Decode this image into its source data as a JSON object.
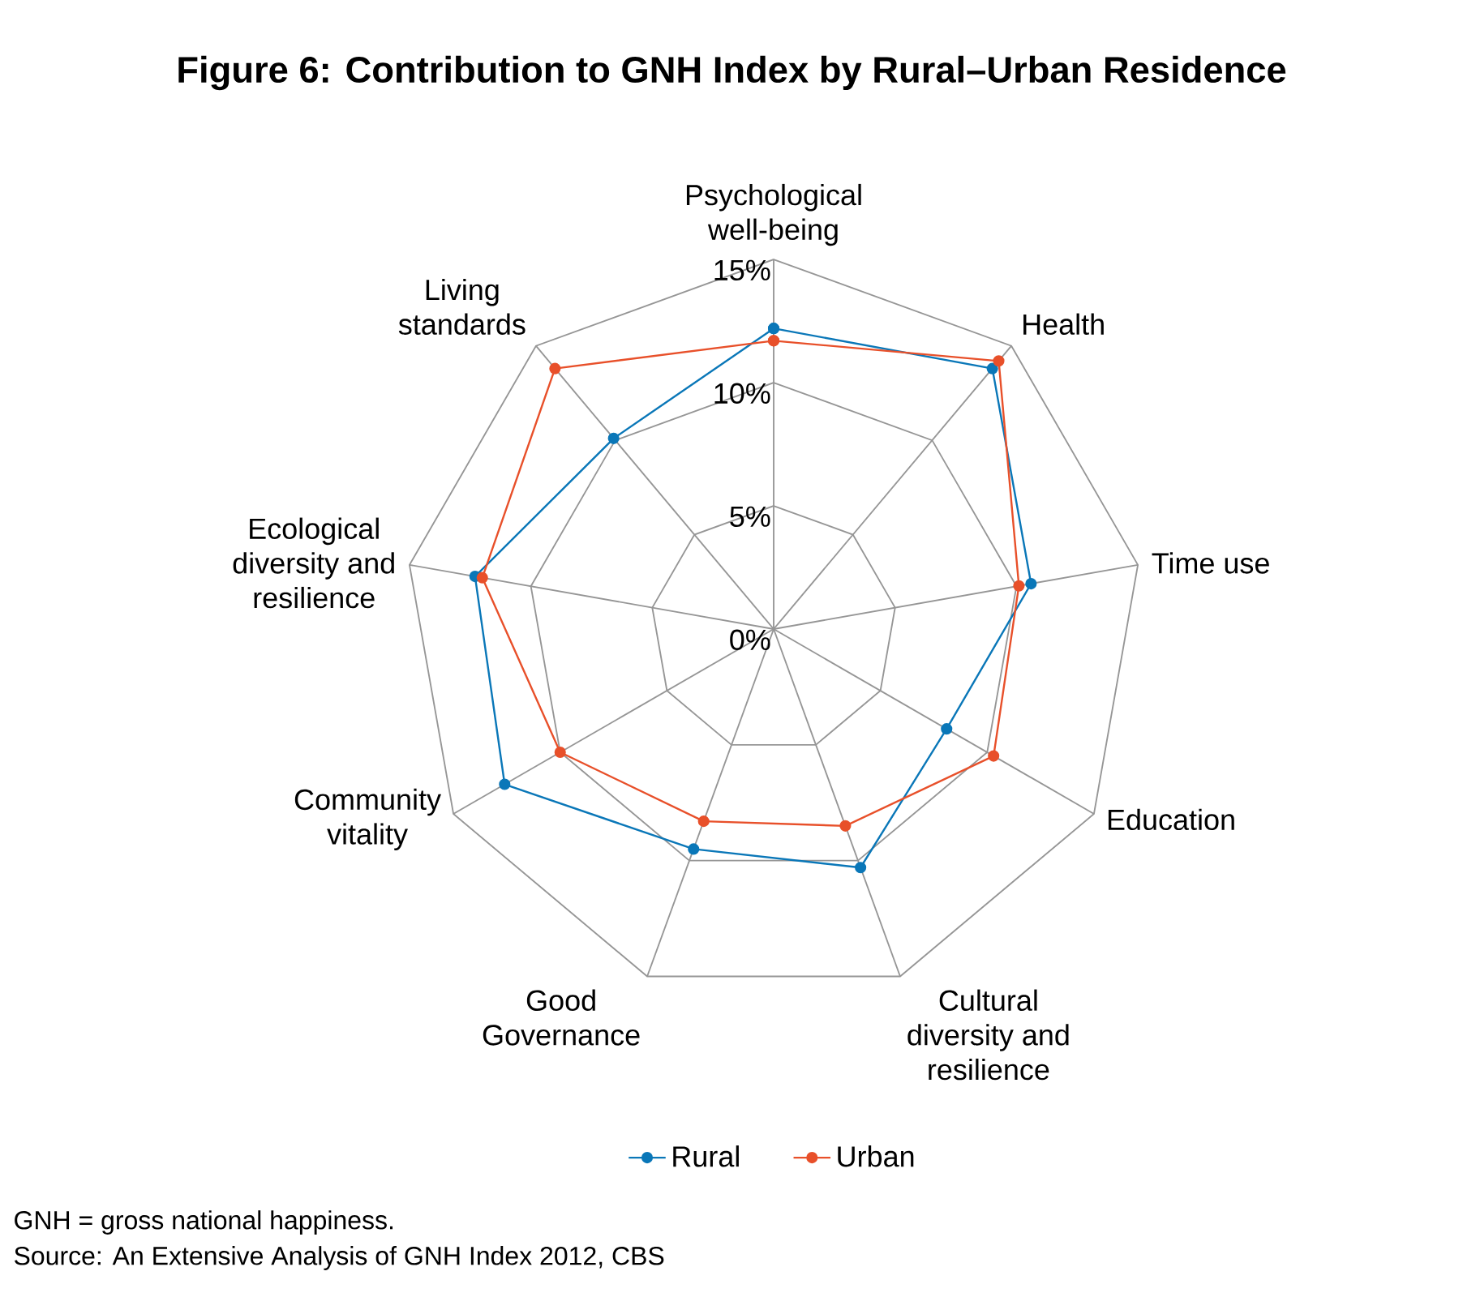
{
  "chart_data": {
    "type": "radar",
    "title": "Figure 6: Contribution to GNH Index by Rural–Urban Residence",
    "categories": [
      "Psychological well-being",
      "Health",
      "Time use",
      "Education",
      "Cultural diversity and resilience",
      "Good Governance",
      "Community vitality",
      "Ecological diversity and resilience",
      "Living standards"
    ],
    "series": [
      {
        "name": "Rural",
        "color": "#0a77b8",
        "values": [
          12.2,
          13.8,
          10.6,
          8.1,
          10.3,
          9.5,
          12.6,
          12.3,
          10.1
        ]
      },
      {
        "name": "Urban",
        "color": "#e8502a",
        "values": [
          11.7,
          14.2,
          10.1,
          10.3,
          8.5,
          8.3,
          10.0,
          12.0,
          13.8
        ]
      }
    ],
    "ylim": [
      0,
      15
    ],
    "yticks": [
      {
        "value": 0,
        "label": "0%"
      },
      {
        "value": 5,
        "label": "5%"
      },
      {
        "value": 10,
        "label": "10%"
      },
      {
        "value": 15,
        "label": "15%"
      }
    ],
    "grid": true,
    "legend": "bottom",
    "marker": "circle",
    "line_style": "solid",
    "annotations": [
      "GNH = gross national happiness.",
      "Source: An Extensive Analysis of GNH Index 2012, CBS"
    ]
  }
}
